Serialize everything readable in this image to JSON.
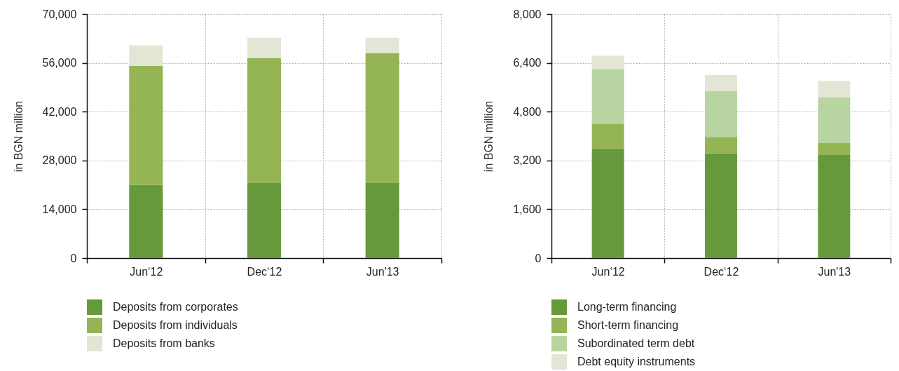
{
  "chart_data": [
    {
      "type": "bar",
      "stacked": true,
      "categories": [
        "Jun‘12",
        "Dec‘12",
        "Jun'13"
      ],
      "ylabel": "in BGN million",
      "ylim": [
        0,
        70000
      ],
      "yticks": [
        0,
        {
          "value": 14000,
          "label": "14,000"
        },
        {
          "value": 28000,
          "label": "28,000"
        },
        {
          "value": 42000,
          "label": "42,000"
        },
        {
          "value": 56000,
          "label": "56,000"
        },
        {
          "value": 70000,
          "label": "70,000"
        }
      ],
      "grid": true,
      "legend": "bottom",
      "series": [
        {
          "name": "Deposits from corporates",
          "color": "#66993c",
          "values": [
            21000,
            21500,
            21500
          ]
        },
        {
          "name": "Deposits from individuals",
          "color": "#95b554",
          "values": [
            34100,
            35900,
            37300
          ]
        },
        {
          "name": "Deposits from banks",
          "color": "#e3e6d4",
          "values": [
            5900,
            5800,
            4400
          ]
        }
      ]
    },
    {
      "type": "bar",
      "stacked": true,
      "categories": [
        "Jun‘12",
        "Dec‘12",
        "Jun'13"
      ],
      "ylabel": "in BGN million",
      "ylim": [
        0,
        8000
      ],
      "yticks": [
        0,
        {
          "value": 1600,
          "label": "1,600"
        },
        {
          "value": 3200,
          "label": "3,200"
        },
        {
          "value": 4800,
          "label": "4,800"
        },
        {
          "value": 6400,
          "label": "6,400"
        },
        {
          "value": 8000,
          "label": "8,000"
        }
      ],
      "grid": true,
      "legend": "bottom",
      "series": [
        {
          "name": "Long-term financing",
          "color": "#66993c",
          "values": [
            3590,
            3430,
            3380
          ]
        },
        {
          "name": "Short-term financing",
          "color": "#95b554",
          "values": [
            800,
            540,
            390
          ]
        },
        {
          "name": "Subordinated term debt",
          "color": "#b8d4a0",
          "values": [
            1810,
            1510,
            1500
          ]
        },
        {
          "name": "Debt equity instruments",
          "color": "#e3e6d4",
          "values": [
            430,
            520,
            540
          ]
        }
      ]
    }
  ]
}
